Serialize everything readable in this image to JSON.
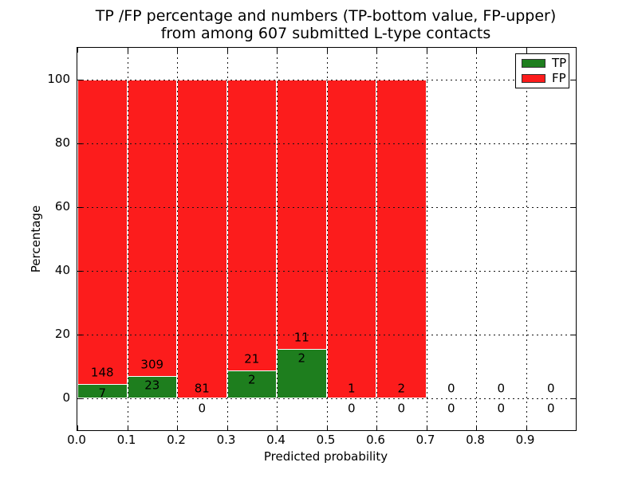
{
  "figure": {
    "title_line1": "TP /FP percentage and numbers (TP-bottom value, FP-upper)",
    "title_line2": "from among 607 submitted L-type contacts",
    "xlabel": "Predicted probability",
    "ylabel": "Percentage"
  },
  "chart_data": {
    "type": "bar",
    "stacked": true,
    "title": "TP /FP percentage and numbers (TP-bottom value, FP-upper) from among 607 submitted L-type contacts",
    "xlabel": "Predicted probability",
    "ylabel": "Percentage",
    "xlim": [
      0.0,
      1.0
    ],
    "ylim": [
      -10,
      110
    ],
    "xticks": [
      0.0,
      0.1,
      0.2,
      0.3,
      0.4,
      0.5,
      0.6,
      0.7,
      0.8,
      0.9
    ],
    "yticks": [
      0,
      20,
      40,
      60,
      80,
      100
    ],
    "grid": "dotted-over-bars",
    "colors": {
      "tp": "#1e7e1e",
      "fp": "#fc1c1c",
      "bar_edge": "#ffffff",
      "gridline": "#151515"
    },
    "legend": {
      "position": "upper right",
      "entries": [
        {
          "label": "TP",
          "color": "#1e7e1e"
        },
        {
          "label": "FP",
          "color": "#fc1c1c"
        }
      ]
    },
    "bins": [
      {
        "x0": 0.0,
        "x1": 0.1,
        "tp": 7,
        "fp": 148,
        "tp_pct": 4.5,
        "total_pct": 100
      },
      {
        "x0": 0.1,
        "x1": 0.2,
        "tp": 23,
        "fp": 309,
        "tp_pct": 6.9,
        "total_pct": 100
      },
      {
        "x0": 0.2,
        "x1": 0.3,
        "tp": 0,
        "fp": 81,
        "tp_pct": 0,
        "total_pct": 100
      },
      {
        "x0": 0.3,
        "x1": 0.4,
        "tp": 2,
        "fp": 21,
        "tp_pct": 8.7,
        "total_pct": 100
      },
      {
        "x0": 0.4,
        "x1": 0.5,
        "tp": 2,
        "fp": 11,
        "tp_pct": 15.4,
        "total_pct": 100
      },
      {
        "x0": 0.5,
        "x1": 0.6,
        "tp": 0,
        "fp": 1,
        "tp_pct": 0,
        "total_pct": 100
      },
      {
        "x0": 0.6,
        "x1": 0.7,
        "tp": 0,
        "fp": 2,
        "tp_pct": 0,
        "total_pct": 100
      },
      {
        "x0": 0.7,
        "x1": 0.8,
        "tp": 0,
        "fp": 0,
        "tp_pct": 0,
        "total_pct": 0
      },
      {
        "x0": 0.8,
        "x1": 0.9,
        "tp": 0,
        "fp": 0,
        "tp_pct": 0,
        "total_pct": 0
      },
      {
        "x0": 0.9,
        "x1": 1.0,
        "tp": 0,
        "fp": 0,
        "tp_pct": 0,
        "total_pct": 0
      }
    ]
  }
}
